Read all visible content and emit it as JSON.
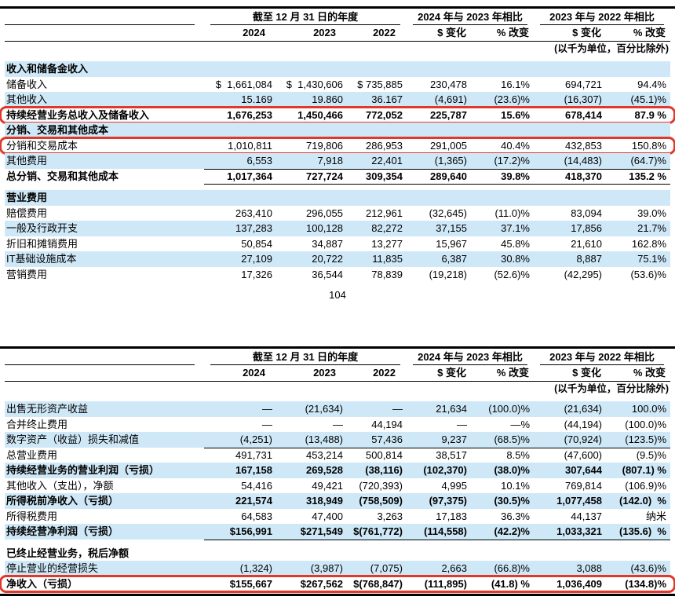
{
  "page": {
    "number": "104"
  },
  "colors": {
    "row_highlight": "#cfe8f7",
    "annotation_red": "#e2382a",
    "rule_black": "#000000"
  },
  "tables": [
    {
      "name": "continuing-operations-revenue-and-costs",
      "header": {
        "period_group": "截至 12 月 31 日的年度",
        "cmp1_group": "2024 年与 2023 年相比",
        "cmp2_group": "2023 年与 2022 年相比",
        "columns": [
          "2024",
          "2023",
          "2022",
          "$ 变化",
          "% 改变",
          "$ 变化",
          "% 改变"
        ],
        "note": "(以千为单位，百分比除外)"
      },
      "rows": [
        {
          "label": "收入和储备金收入",
          "section": true,
          "shaded": true,
          "cells": []
        },
        {
          "label": "储备收入",
          "cells": [
            "$  1,661,084",
            "$  1,430,606",
            "$ 735,885",
            "230,478",
            "16.1%",
            "694,721",
            "94.4%"
          ]
        },
        {
          "label": "其他收入",
          "shaded": true,
          "underline": true,
          "cells": [
            "15.169",
            "19.860",
            "36.167",
            "(4,691)",
            "(23.6)%",
            "(16,307)",
            "(45.1)%"
          ]
        },
        {
          "label": "持续经营业务总收入及储备收入",
          "bold": true,
          "redbox": true,
          "cells": [
            "1,676,253",
            "1,450,466",
            "772,052",
            "225,787",
            "15.6%",
            "678,414",
            "87.9 %"
          ]
        },
        {
          "label": "分销、交易和其他成本",
          "section": true,
          "shaded": true,
          "cells": []
        },
        {
          "label": "分销和交易成本",
          "redbox": true,
          "cells": [
            "1,010,811",
            "719,806",
            "286,953",
            "291,005",
            "40.4%",
            "432,853",
            "150.8%"
          ]
        },
        {
          "label": "其他费用",
          "shaded": true,
          "underline": true,
          "cells": [
            "6,553",
            "7,918",
            "22,401",
            "(1,365)",
            "(17.2)%",
            "(14,483)",
            "(64.7)%"
          ]
        },
        {
          "label": "总分销、交易和其他成本",
          "bold": true,
          "underline": true,
          "cells": [
            "1,017,364",
            "727,724",
            "309,354",
            "289,640",
            "39.8%",
            "418,370",
            "135.2 %"
          ]
        },
        {
          "label": "营业费用",
          "section": true,
          "shaded": true,
          "gap_before": true,
          "cells": []
        },
        {
          "label": "赔偿费用",
          "cells": [
            "263,410",
            "296,055",
            "212,961",
            "(32,645)",
            "(11.0)%",
            "83,094",
            "39.0%"
          ]
        },
        {
          "label": "一般及行政开支",
          "shaded": true,
          "cells": [
            "137,283",
            "100,128",
            "82,272",
            "37,155",
            "37.1%",
            "17,856",
            "21.7%"
          ]
        },
        {
          "label": "折旧和摊销费用",
          "cells": [
            "50,854",
            "34,887",
            "13,277",
            "15,967",
            "45.8%",
            "21,610",
            "162.8%"
          ]
        },
        {
          "label": "IT基础设施成本",
          "shaded": true,
          "cells": [
            "27,109",
            "20,722",
            "11,835",
            "6,387",
            "30.8%",
            "8,887",
            "75.1%"
          ]
        },
        {
          "label": "营销费用",
          "cells": [
            "17,326",
            "36,544",
            "78,839",
            "(19,218)",
            "(52.6)%",
            "(42,295)",
            "(53.6)%"
          ]
        }
      ]
    },
    {
      "name": "operating-income-and-net-income",
      "header": {
        "period_group": "截至 12 月 31 日的年度",
        "cmp1_group": "2024 年与 2023 年相比",
        "cmp2_group": "2023 年与 2022 年相比",
        "columns": [
          "2024",
          "2023",
          "2022",
          "$ 变化",
          "% 改变",
          "$ 变化",
          "% 改变"
        ],
        "note": "(以千为单位，百分比除外)"
      },
      "rows": [
        {
          "label": "出售无形资产收益",
          "shaded": true,
          "cells": [
            "—",
            "(21,634)",
            "—",
            "21,634",
            "(100.0)%",
            "(21,634)",
            "100.0%"
          ]
        },
        {
          "label": "合并终止费用",
          "cells": [
            "—",
            "—",
            "44,194",
            "—",
            "—%",
            "(44,194)",
            "(100.0)%"
          ]
        },
        {
          "label": "数字资产（收益）损失和减值",
          "shaded": true,
          "underline": true,
          "cells": [
            "(4,251)",
            "(13,488)",
            "57,436",
            "9,237",
            "(68.5)%",
            "(70,924)",
            "(123.5)%"
          ]
        },
        {
          "label": "总营业费用",
          "underline": true,
          "cells": [
            "491,731",
            "453,214",
            "500,814",
            "38,517",
            "8.5%",
            "(47,600)",
            "(9.5)%"
          ]
        },
        {
          "label": "持续经营业务的营业利润（亏损）",
          "bold": true,
          "shaded": true,
          "cells": [
            "167,158",
            "269,528",
            "(38,116)",
            "(102,370)",
            "(38.0)%",
            "307,644",
            "(807.1) %"
          ]
        },
        {
          "label": "其他收入（支出），净额",
          "underline": true,
          "cells": [
            "54,416",
            "49,421",
            "(720,393)",
            "4,995",
            "10.1%",
            "769,814",
            "(106.9)%"
          ]
        },
        {
          "label": "所得税前净收入（亏损）",
          "bold": true,
          "shaded": true,
          "cells": [
            "221,574",
            "318,949",
            "(758,509)",
            "(97,375)",
            "(30.5)%",
            "1,077,458",
            "(142.0)  %"
          ]
        },
        {
          "label": "所得税费用",
          "underline": true,
          "cells": [
            "64,583",
            "47,400",
            "3,263",
            "17,183",
            "36.3%",
            "44,137",
            "纳米"
          ]
        },
        {
          "label": "持续经营净利润（亏损）",
          "bold": true,
          "shaded": true,
          "underline": true,
          "cells": [
            "$156,991",
            "$271,549",
            "$(761,772)",
            "(114,558)",
            "(42.2)%",
            "1,033,321",
            "(135.6)  %"
          ]
        },
        {
          "label": "已终止经营业务，税后净额",
          "section": true,
          "gap_before": true,
          "cells": []
        },
        {
          "label": "停止营业的经营损失",
          "shaded": true,
          "underline": true,
          "cells": [
            "(1,324)",
            "(3,987)",
            "(7,075)",
            "2,663",
            "(66.8)%",
            "3,088",
            "(43.6)%"
          ]
        },
        {
          "label": "净收入（亏损）",
          "bold": true,
          "redbox": true,
          "cells": [
            "$155,667",
            "$267,562",
            "$(768,847)",
            "(111,895)",
            "(41.8) %",
            "1,036,409",
            "(134.8)%"
          ]
        }
      ]
    }
  ]
}
